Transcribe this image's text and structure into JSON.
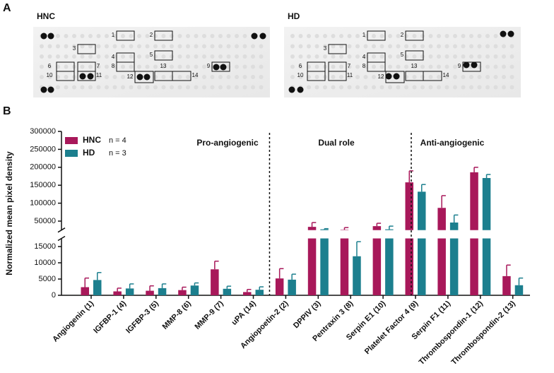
{
  "panel_a": {
    "label": "A",
    "blots": [
      {
        "title": "HNC",
        "boxes": [
          "1",
          "2",
          "3",
          "4",
          "5",
          "6",
          "7",
          "8",
          "9",
          "10",
          "11",
          "12",
          "13",
          "14"
        ]
      },
      {
        "title": "HD",
        "boxes": [
          "1",
          "2",
          "3",
          "4",
          "5",
          "6",
          "7",
          "8",
          "9",
          "10",
          "11",
          "12",
          "13",
          "14"
        ]
      }
    ]
  },
  "chart_data": {
    "type": "bar",
    "panel_label": "B",
    "ylabel": "Normalized mean pixel density",
    "categories": [
      "Angiogenin (1)",
      "IGFBP-1 (4)",
      "IGFBP-3 (5)",
      "MMP-8 (6)",
      "MMP-9 (7)",
      "uPA (14)",
      "Angiopoetin-2 (2)",
      "DPPIV (3)",
      "Pentraxin  3 (8)",
      "Serpin E1 (10)",
      "Platelet Factor 4 (9)",
      "Serpin F1 (11)",
      "Thrombospondin-1 (12)",
      "Thrombospondin-2 (13)"
    ],
    "series": [
      {
        "name": "HNC",
        "n_label": "n = 4",
        "color": "#a8185a",
        "values": [
          2500,
          1200,
          1400,
          1600,
          8000,
          1000,
          5200,
          34000,
          26000,
          36000,
          158000,
          87000,
          186000,
          5900
        ],
        "errors": [
          2800,
          1000,
          1500,
          900,
          2500,
          800,
          3000,
          12000,
          6000,
          8000,
          32000,
          34000,
          14000,
          3400
        ]
      },
      {
        "name": "HD",
        "n_label": "n = 3",
        "color": "#1c7f8e",
        "values": [
          4700,
          2100,
          2200,
          3000,
          2000,
          1700,
          4800,
          27000,
          12000,
          27000,
          132000,
          46000,
          170000,
          3100
        ],
        "errors": [
          2300,
          1400,
          1300,
          800,
          800,
          900,
          1700,
          2000,
          4500,
          9000,
          20000,
          21000,
          10000,
          2200
        ]
      }
    ],
    "sections": [
      {
        "label": "Pro-angiogenic",
        "count": 6
      },
      {
        "label": "Dual role",
        "count": 4
      },
      {
        "label": "Anti-angiogenic",
        "count": 4
      }
    ],
    "ylim": [
      0,
      300000
    ],
    "y_break": [
      17500,
      25000
    ],
    "yticks": [
      0,
      5000,
      10000,
      15000,
      50000,
      100000,
      150000,
      200000,
      250000,
      300000
    ]
  }
}
